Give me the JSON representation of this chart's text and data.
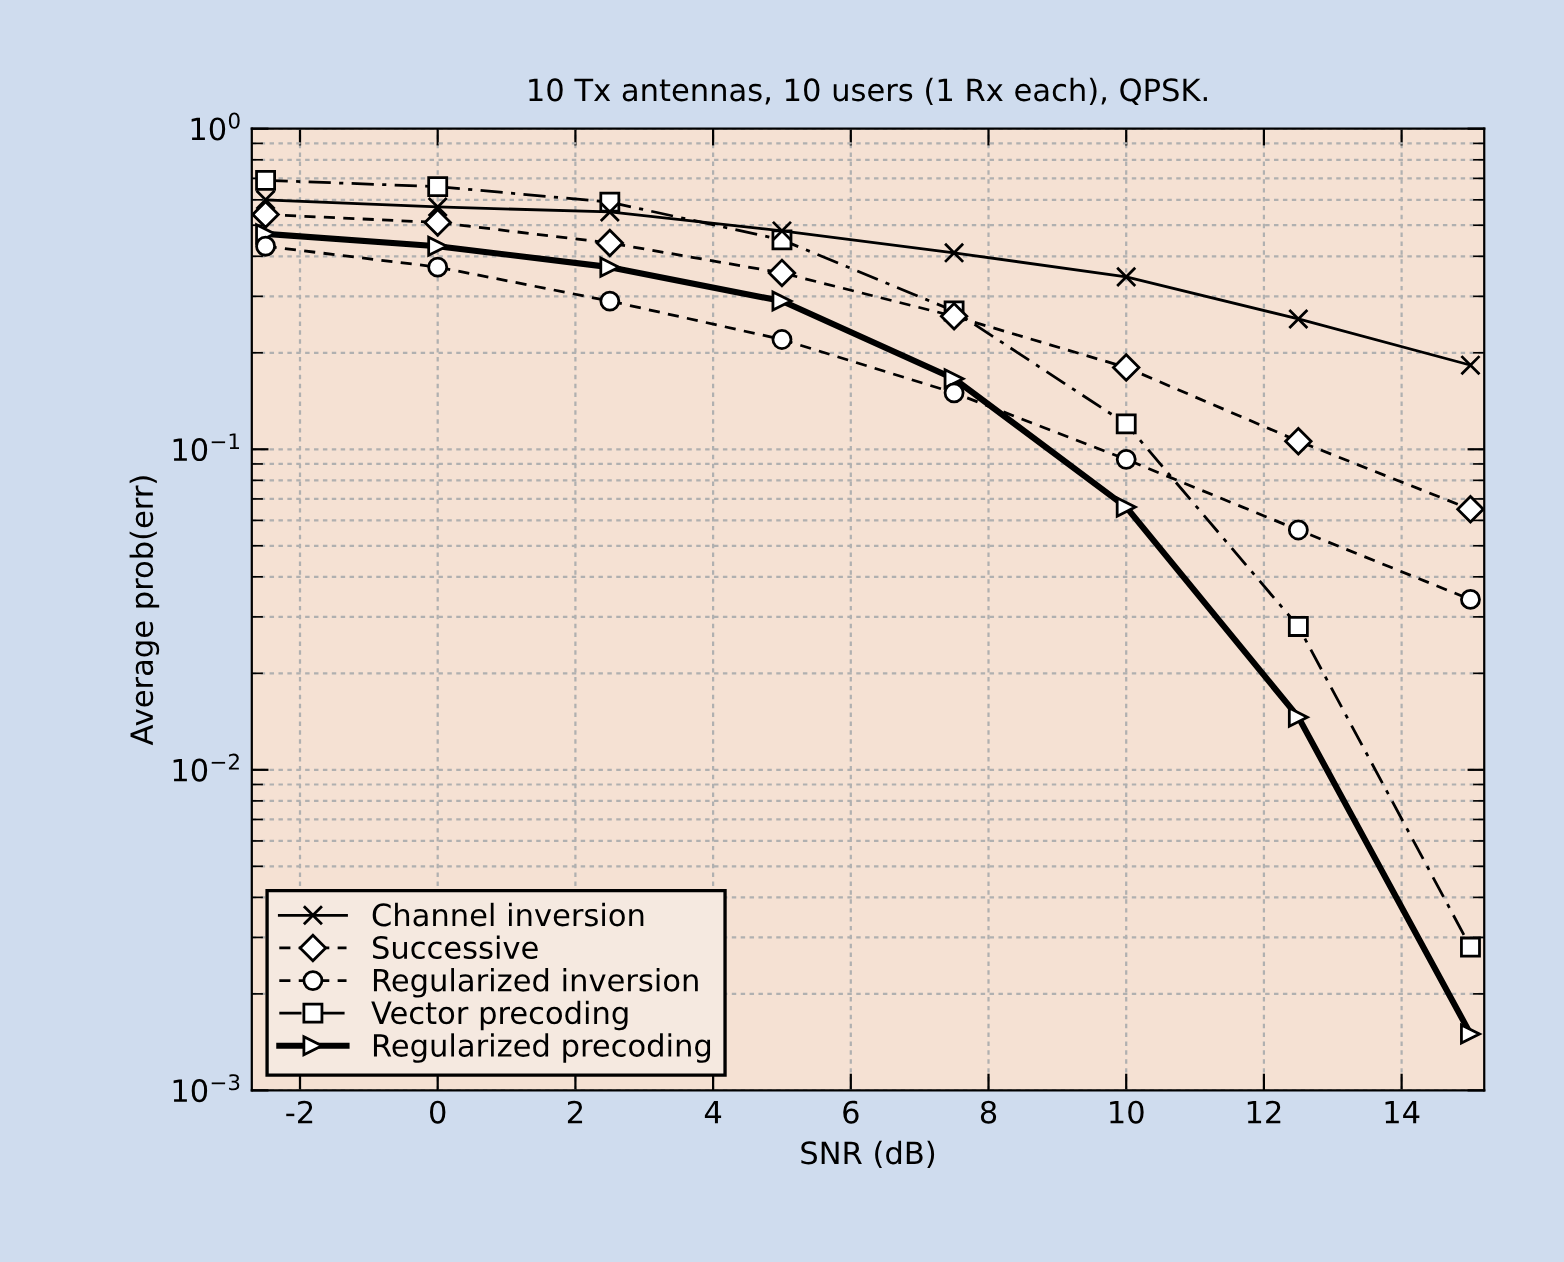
{
  "chart_data": {
    "type": "line",
    "title": "10 Tx antennas, 10 users (1 Rx each), QPSK.",
    "xlabel": "SNR (dB)",
    "ylabel": "Average prob(err)",
    "x": [
      -2.5,
      0,
      2.5,
      5,
      7.5,
      10,
      12.5,
      15
    ],
    "series": [
      {
        "name": "Channel inversion",
        "color": "#000000",
        "marker": "cross",
        "line_style": "solid",
        "values": [
          0.6,
          0.57,
          0.55,
          0.48,
          0.41,
          0.345,
          0.255,
          0.183
        ]
      },
      {
        "name": "Successive",
        "color": "#000000",
        "marker": "diamond",
        "line_style": "dashed",
        "values": [
          0.54,
          0.51,
          0.44,
          0.355,
          0.26,
          0.18,
          0.106,
          0.065
        ]
      },
      {
        "name": "Regularized inversion",
        "color": "#000000",
        "marker": "circle",
        "line_style": "dashed",
        "values": [
          0.43,
          0.37,
          0.29,
          0.22,
          0.15,
          0.093,
          0.056,
          0.034
        ]
      },
      {
        "name": "Vector precoding",
        "color": "#000000",
        "marker": "square",
        "line_style": "dashdot",
        "values": [
          0.69,
          0.66,
          0.59,
          0.45,
          0.27,
          0.12,
          0.028,
          0.0028
        ]
      },
      {
        "name": "Regularized precoding",
        "color": "#000000",
        "marker": "triangle",
        "line_style": "solid",
        "values": [
          0.47,
          0.43,
          0.37,
          0.29,
          0.166,
          0.066,
          0.0146,
          0.0015
        ]
      }
    ],
    "log": "y",
    "xlim": [
      -2.7,
      15.2
    ],
    "ylim": [
      0.001,
      1
    ],
    "xticks": [
      -2,
      0,
      2,
      4,
      6,
      8,
      10,
      12,
      14
    ],
    "yticks": [
      {
        "value": 0.001,
        "label": "10$^{−3}$"
      },
      {
        "value": 0.01,
        "label": "10$^{−2}$"
      },
      {
        "value": 0.1,
        "label": "10$^{−1}$"
      },
      {
        "value": 1,
        "label": "10$^{0}$"
      }
    ],
    "grid": true,
    "legend": "bottom left"
  }
}
